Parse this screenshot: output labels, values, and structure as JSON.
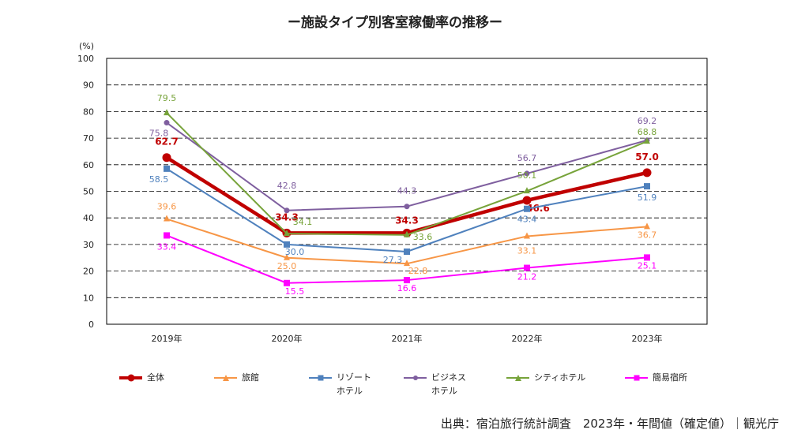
{
  "chart_data": {
    "type": "line",
    "title": "ー施設タイプ別客室稼働率の推移ー",
    "ylabel": "(%)",
    "ylim": [
      0,
      100
    ],
    "yticks": [
      "0",
      "10",
      "20",
      "30",
      "40",
      "50",
      "60",
      "70",
      "80",
      "90",
      "100"
    ],
    "categories": [
      "2019年",
      "2020年",
      "2021年",
      "2022年",
      "2023年"
    ],
    "grid": true,
    "legend_position": "bottom",
    "series": [
      {
        "name": "全体",
        "color": "#c00000",
        "marker": "circle",
        "bold": true,
        "values": [
          62.7,
          34.3,
          34.3,
          46.6,
          57.0
        ],
        "labels": [
          "62.7",
          "34.3",
          "34.3",
          "46.6",
          "57.0"
        ]
      },
      {
        "name": "旅館",
        "color": "#f79646",
        "marker": "triangle",
        "values": [
          39.6,
          25.0,
          22.8,
          33.1,
          36.7
        ],
        "labels": [
          "39.6",
          "25.0",
          "22.8",
          "33.1",
          "36.7"
        ]
      },
      {
        "name": "リゾート\nホテル",
        "color": "#4f81bd",
        "marker": "square",
        "values": [
          58.5,
          30.0,
          27.3,
          43.4,
          51.9
        ],
        "labels": [
          "58.5",
          "30.0",
          "27.3",
          "43.4",
          "51.9"
        ]
      },
      {
        "name": "ビジネス\nホテル",
        "color": "#7f5f9f",
        "marker": "circle",
        "values": [
          75.8,
          42.8,
          44.3,
          56.7,
          69.2
        ],
        "labels": [
          "75.8",
          "42.8",
          "44.3",
          "56.7",
          "69.2"
        ]
      },
      {
        "name": "シティホテル",
        "color": "#77a33a",
        "marker": "triangle",
        "values": [
          79.5,
          34.1,
          33.6,
          50.1,
          68.8
        ],
        "labels": [
          "79.5",
          "34.1",
          "33.6",
          "50.1",
          "68.8"
        ]
      },
      {
        "name": "簡易宿所",
        "color": "#ff00ff",
        "marker": "square",
        "values": [
          33.4,
          15.5,
          16.6,
          21.2,
          25.1
        ],
        "labels": [
          "33.4",
          "15.5",
          "16.6",
          "21.2",
          "25.1"
        ]
      }
    ]
  },
  "source": "出典：宿泊旅行統計調査　2023年・年間値（確定値）｜観光庁"
}
